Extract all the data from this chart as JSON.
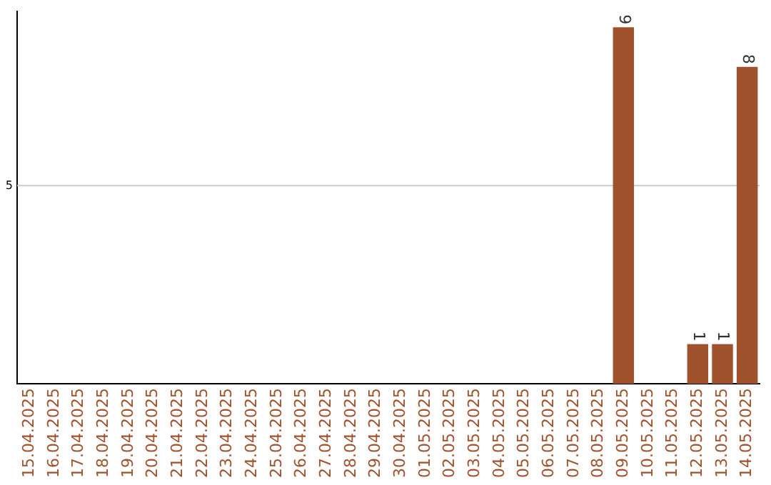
{
  "chart_data": {
    "type": "bar",
    "categories": [
      "15.04.2025",
      "16.04.2025",
      "17.04.2025",
      "18.04.2025",
      "19.04.2025",
      "20.04.2025",
      "21.04.2025",
      "22.04.2025",
      "23.04.2025",
      "24.04.2025",
      "25.04.2025",
      "26.04.2025",
      "27.04.2025",
      "28.04.2025",
      "29.04.2025",
      "30.04.2025",
      "01.05.2025",
      "02.05.2025",
      "03.05.2025",
      "04.05.2025",
      "05.05.2025",
      "06.05.2025",
      "07.05.2025",
      "08.05.2025",
      "09.05.2025",
      "10.05.2025",
      "11.05.2025",
      "12.05.2025",
      "13.05.2025",
      "14.05.2025"
    ],
    "values": [
      null,
      null,
      null,
      null,
      null,
      null,
      null,
      null,
      null,
      null,
      null,
      null,
      null,
      null,
      null,
      null,
      null,
      null,
      null,
      null,
      null,
      null,
      null,
      null,
      9,
      null,
      null,
      1,
      1,
      8
    ],
    "data_labels": true,
    "color": "#a0522d",
    "ylim": [
      0,
      9.4
    ],
    "ref_lines": [
      {
        "axis": "y",
        "value": 5,
        "label": "5",
        "color": "#cccccc"
      }
    ],
    "legend": false
  }
}
